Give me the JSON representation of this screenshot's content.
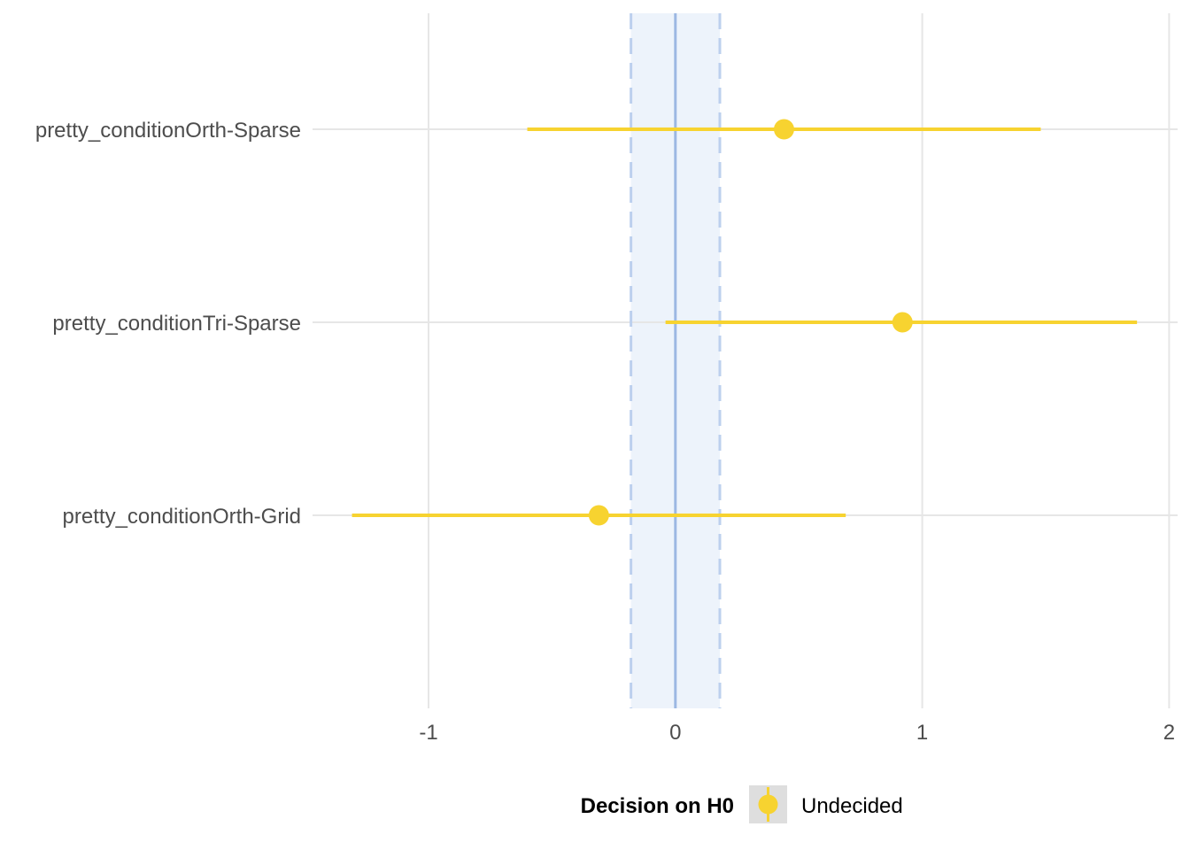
{
  "chart_data": {
    "type": "scatter",
    "subtype": "forest-plot-pointrange",
    "title": "",
    "xlabel": "",
    "ylabel": "",
    "xlim": [
      -1.5,
      2
    ],
    "x_ticks": [
      -1,
      0,
      1,
      2
    ],
    "x_tick_labels": [
      "-1",
      "0",
      "1",
      "2"
    ],
    "categories": [
      "pretty_conditionOrth-Sparse",
      "pretty_conditionTri-Sparse",
      "pretty_conditionOrth-Grid"
    ],
    "series": [
      {
        "name": "Undecided",
        "color": "#f7d330",
        "estimates": [
          0.44,
          0.92,
          -0.31
        ],
        "ci_low": [
          -0.6,
          -0.04,
          -1.31
        ],
        "ci_high": [
          1.48,
          1.87,
          0.69
        ]
      }
    ],
    "rope": {
      "low": -0.18,
      "high": 0.18,
      "center": 0,
      "fill_color": "#edf3fb",
      "line_color": "#bcd0ee",
      "center_line_color": "#9cb8e3"
    },
    "grid": true,
    "grid_color": "#e6e6e6",
    "legend": {
      "title": "Decision on H0",
      "entries": [
        "Undecided"
      ],
      "placement": "bottom",
      "key_background": "#dedede"
    }
  }
}
